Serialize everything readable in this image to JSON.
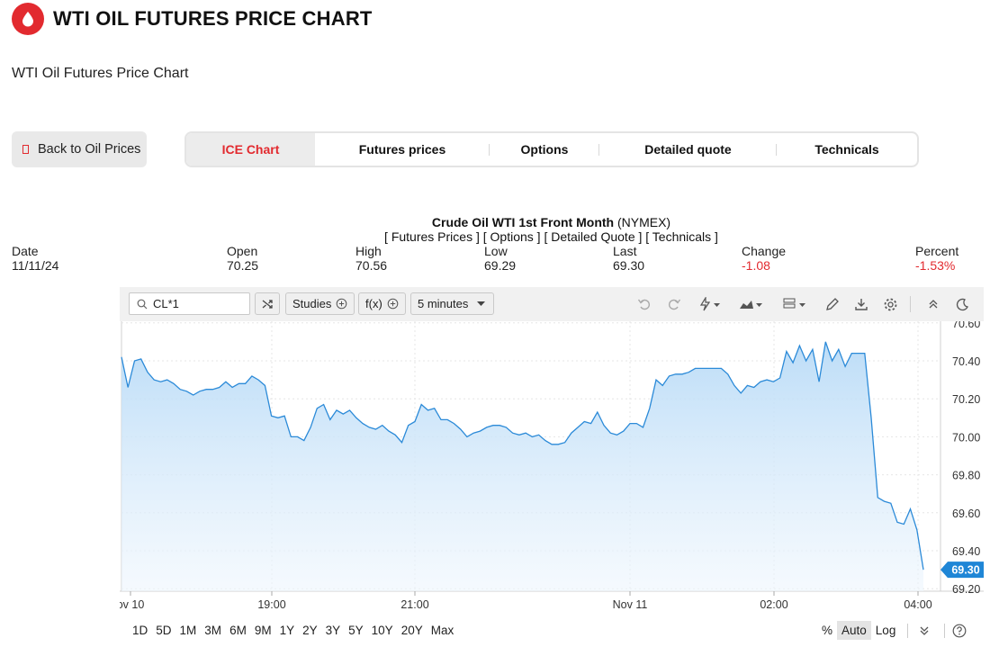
{
  "header": {
    "title": "WTI OIL FUTURES PRICE CHART",
    "subtitle": "WTI Oil Futures Price Chart"
  },
  "nav": {
    "back_label": "Back to Oil Prices",
    "tabs": [
      {
        "label": "ICE Chart"
      },
      {
        "label": "Futures prices"
      },
      {
        "label": "Options"
      },
      {
        "label": "Detailed quote"
      },
      {
        "label": "Technicals"
      }
    ]
  },
  "quote": {
    "name": "Crude Oil WTI 1st Front Month",
    "exchange": "(NYMEX)",
    "links": "[ Futures Prices ] [ Options ] [ Detailed Quote ] [ Technicals ]",
    "columns": [
      {
        "label": "Date",
        "value": "11/11/24"
      },
      {
        "label": "Open",
        "value": "70.25"
      },
      {
        "label": "High",
        "value": "70.56"
      },
      {
        "label": "Low",
        "value": "69.29"
      },
      {
        "label": "Last",
        "value": "69.30"
      },
      {
        "label": "Change",
        "value": "-1.08"
      },
      {
        "label": "Percent",
        "value": "-1.53%"
      }
    ]
  },
  "toolbar": {
    "symbol": "CL*1",
    "studies_label": "Studies",
    "fx_label": "f(x)",
    "interval_label": "5 minutes"
  },
  "chart_data": {
    "type": "area",
    "x_ticks": [
      "ov 10",
      "19:00",
      "21:00",
      "Nov 11",
      "02:00",
      "04:00"
    ],
    "y_ticks": [
      "70.60",
      "70.40",
      "70.20",
      "70.00",
      "69.80",
      "69.60",
      "69.40",
      "69.20"
    ],
    "ylim": [
      69.2,
      70.6
    ],
    "last_label": "69.30",
    "color": "#2b8ad8",
    "series": [
      {
        "values": [
          70.42,
          70.26,
          70.4,
          70.41,
          70.34,
          70.3,
          70.29,
          70.3,
          70.28,
          70.25,
          70.24,
          70.22,
          70.24,
          70.25,
          70.25,
          70.26,
          70.29,
          70.26,
          70.28,
          70.28,
          70.32,
          70.3,
          70.27,
          70.11,
          70.1,
          70.11,
          70.0,
          70.0,
          69.98,
          70.05,
          70.15,
          70.17,
          70.09,
          70.14,
          70.12,
          70.14,
          70.1,
          70.07,
          70.05,
          70.04,
          70.06,
          70.03,
          70.01,
          69.97,
          70.06,
          70.08,
          70.17,
          70.14,
          70.15,
          70.09,
          70.09,
          70.07,
          70.04,
          70.0,
          70.02,
          70.03,
          70.05,
          70.06,
          70.06,
          70.05,
          70.02,
          70.01,
          70.02,
          70.0,
          70.01,
          69.98,
          69.96,
          69.96,
          69.97,
          70.02,
          70.05,
          70.08,
          70.07,
          70.13,
          70.06,
          70.02,
          70.01,
          70.03,
          70.07,
          70.07,
          70.05,
          70.15,
          70.3,
          70.27,
          70.32,
          70.33,
          70.33,
          70.34,
          70.36,
          70.36,
          70.36,
          70.36,
          70.36,
          70.33,
          70.27,
          70.23,
          70.27,
          70.26,
          70.29,
          70.3,
          70.29,
          70.31,
          70.45,
          70.39,
          70.48,
          70.4,
          70.46,
          70.29,
          70.5,
          70.4,
          70.46,
          70.37,
          70.44,
          70.44,
          70.44,
          70.1,
          69.68,
          69.66,
          69.65,
          69.55,
          69.54,
          69.62,
          69.51,
          69.3
        ]
      }
    ]
  },
  "ranges": [
    "1D",
    "5D",
    "1M",
    "3M",
    "6M",
    "9M",
    "1Y",
    "2Y",
    "3Y",
    "5Y",
    "10Y",
    "20Y",
    "Max"
  ],
  "scale_options": {
    "percent": "%",
    "auto": "Auto",
    "log": "Log"
  }
}
